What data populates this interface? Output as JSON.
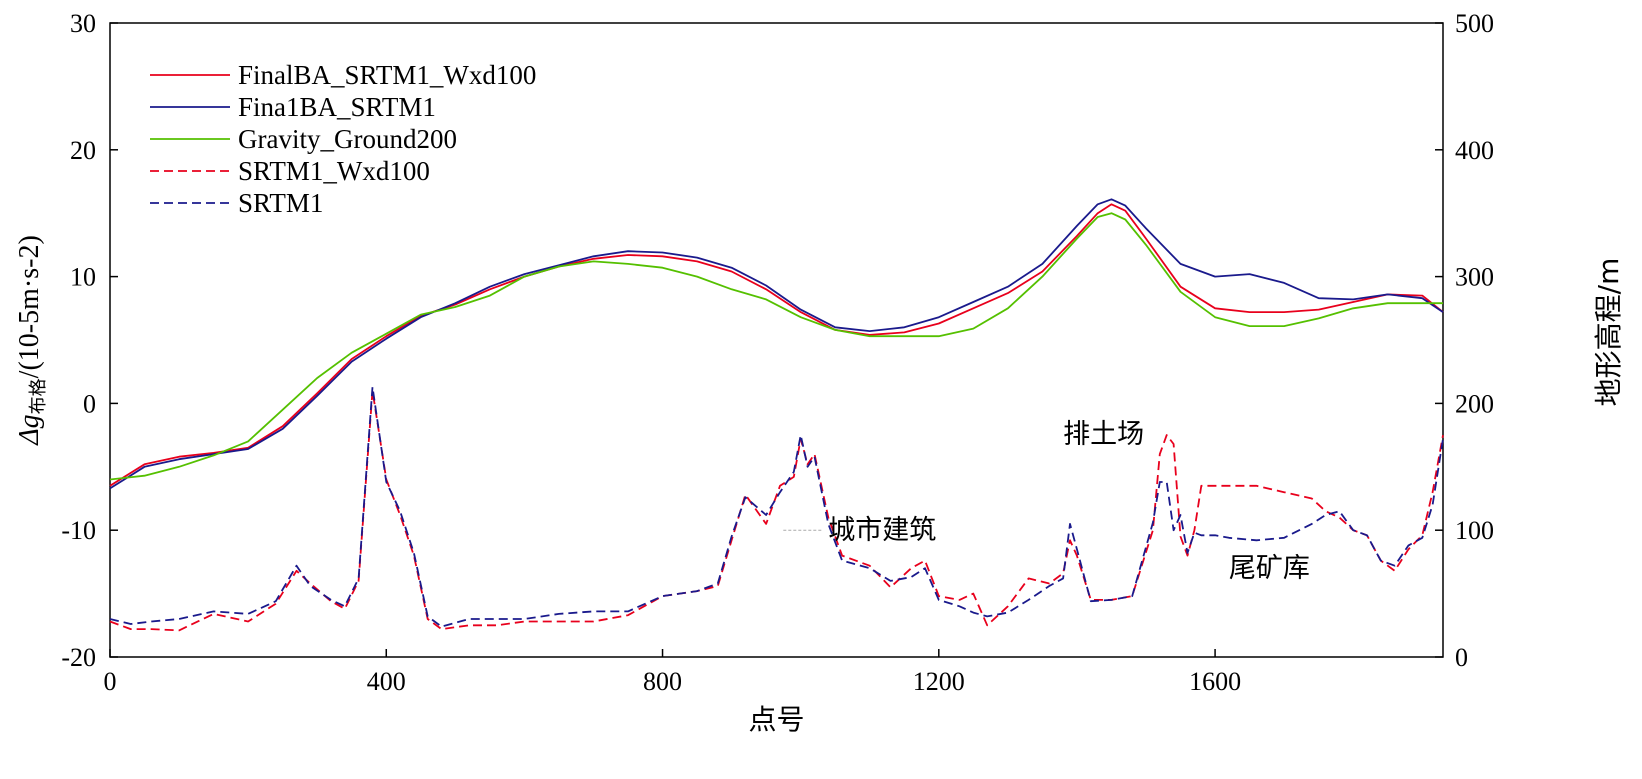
{
  "chart_data": {
    "type": "line",
    "xlabel": "点号",
    "ylabel_left": "Δg布格/(10⁻⁵m·s⁻²)",
    "ylabel_left_main": "Δg",
    "ylabel_left_sub": "布格",
    "ylabel_left_unit": "/(10-5m·s-2)",
    "ylabel_right": "地形高程/m",
    "xlim": [
      0,
      1930
    ],
    "ylim_left": [
      -20,
      30
    ],
    "ylim_right": [
      0,
      500
    ],
    "x_ticks": [
      0,
      400,
      800,
      1200,
      1600
    ],
    "y_left_ticks": [
      -20,
      -10,
      0,
      10,
      20,
      30
    ],
    "y_right_ticks": [
      0,
      100,
      200,
      300,
      400,
      500
    ],
    "legend_position": "top-left",
    "grid": false,
    "colors": {
      "red": "#e8001c",
      "blue": "#1a1a8c",
      "green": "#55c000"
    },
    "series": [
      {
        "name": "FinalBA_SRTM1_Wxd100",
        "axis": "left",
        "style": "solid",
        "color": "#e8001c",
        "x": [
          0,
          50,
          100,
          150,
          200,
          250,
          300,
          350,
          400,
          450,
          500,
          550,
          600,
          650,
          700,
          750,
          800,
          850,
          900,
          950,
          1000,
          1050,
          1100,
          1150,
          1200,
          1250,
          1300,
          1350,
          1400,
          1430,
          1450,
          1470,
          1500,
          1550,
          1600,
          1650,
          1700,
          1750,
          1800,
          1850,
          1900,
          1930
        ],
        "y": [
          -6.5,
          -4.8,
          -4.2,
          -3.9,
          -3.5,
          -1.8,
          0.8,
          3.5,
          5.3,
          6.9,
          7.8,
          9.0,
          10.0,
          10.8,
          11.4,
          11.7,
          11.6,
          11.2,
          10.4,
          9.0,
          7.2,
          5.8,
          5.4,
          5.6,
          6.3,
          7.5,
          8.7,
          10.4,
          13.2,
          15.0,
          15.7,
          15.2,
          13.0,
          9.2,
          7.5,
          7.2,
          7.2,
          7.4,
          8.0,
          8.6,
          8.5,
          7.2
        ]
      },
      {
        "name": "Fina1BA_SRTM1",
        "axis": "left",
        "style": "solid",
        "color": "#1a1a8c",
        "x": [
          0,
          50,
          100,
          150,
          200,
          250,
          300,
          350,
          400,
          450,
          500,
          550,
          600,
          650,
          700,
          750,
          800,
          850,
          900,
          950,
          1000,
          1050,
          1100,
          1150,
          1200,
          1250,
          1300,
          1350,
          1400,
          1430,
          1450,
          1470,
          1500,
          1550,
          1600,
          1650,
          1700,
          1750,
          1800,
          1850,
          1900,
          1930
        ],
        "y": [
          -6.7,
          -5.0,
          -4.4,
          -4.0,
          -3.6,
          -2.0,
          0.6,
          3.3,
          5.1,
          6.8,
          7.9,
          9.2,
          10.2,
          10.9,
          11.6,
          12.0,
          11.9,
          11.5,
          10.7,
          9.3,
          7.4,
          6.0,
          5.7,
          6.0,
          6.8,
          8.0,
          9.2,
          11.0,
          14.0,
          15.7,
          16.1,
          15.6,
          13.8,
          11.0,
          10.0,
          10.2,
          9.5,
          8.3,
          8.2,
          8.6,
          8.3,
          7.2
        ]
      },
      {
        "name": "Gravity_Ground200",
        "axis": "left",
        "style": "solid",
        "color": "#55c000",
        "x": [
          0,
          50,
          100,
          150,
          200,
          250,
          300,
          350,
          400,
          450,
          500,
          550,
          600,
          650,
          700,
          750,
          800,
          850,
          900,
          950,
          1000,
          1050,
          1100,
          1150,
          1200,
          1250,
          1300,
          1350,
          1400,
          1430,
          1450,
          1470,
          1500,
          1550,
          1600,
          1650,
          1700,
          1750,
          1800,
          1850,
          1900,
          1930
        ],
        "y": [
          -6.0,
          -5.7,
          -5.0,
          -4.1,
          -3.0,
          -0.5,
          2.0,
          4.0,
          5.5,
          7.0,
          7.6,
          8.5,
          10.0,
          10.8,
          11.2,
          11.0,
          10.7,
          10.0,
          9.0,
          8.2,
          6.8,
          5.8,
          5.3,
          5.3,
          5.3,
          5.9,
          7.5,
          10.0,
          13.0,
          14.7,
          15.0,
          14.5,
          12.5,
          8.8,
          6.8,
          6.1,
          6.1,
          6.7,
          7.5,
          7.9,
          7.9,
          7.9
        ]
      },
      {
        "name": "SRTM1_Wxd100",
        "axis": "right",
        "style": "dashed",
        "color": "#e8001c",
        "x": [
          0,
          30,
          60,
          100,
          150,
          200,
          240,
          270,
          290,
          320,
          340,
          360,
          380,
          400,
          420,
          440,
          460,
          480,
          520,
          560,
          600,
          650,
          700,
          750,
          800,
          850,
          880,
          900,
          920,
          950,
          970,
          990,
          1000,
          1010,
          1020,
          1040,
          1060,
          1100,
          1130,
          1160,
          1180,
          1200,
          1230,
          1250,
          1270,
          1300,
          1330,
          1360,
          1380,
          1390,
          1400,
          1420,
          1450,
          1480,
          1510,
          1520,
          1530,
          1540,
          1550,
          1560,
          1570,
          1580,
          1600,
          1620,
          1660,
          1700,
          1740,
          1760,
          1780,
          1800,
          1820,
          1840,
          1860,
          1880,
          1900,
          1915,
          1930
        ],
        "y": [
          28,
          22,
          22,
          21,
          34,
          28,
          42,
          68,
          58,
          44,
          38,
          60,
          210,
          140,
          112,
          80,
          30,
          22,
          25,
          25,
          28,
          28,
          28,
          33,
          48,
          52,
          56,
          92,
          128,
          105,
          135,
          142,
          172,
          152,
          160,
          110,
          80,
          72,
          55,
          70,
          76,
          48,
          45,
          50,
          25,
          40,
          62,
          58,
          66,
          92,
          80,
          45,
          45,
          48,
          100,
          160,
          175,
          168,
          95,
          80,
          100,
          135,
          135,
          135,
          135,
          130,
          125,
          115,
          110,
          100,
          96,
          76,
          68,
          85,
          96,
          130,
          175
        ]
      },
      {
        "name": "SRTM1",
        "axis": "right",
        "style": "dashed",
        "color": "#1a1a8c",
        "x": [
          0,
          30,
          60,
          100,
          150,
          200,
          240,
          270,
          290,
          320,
          340,
          360,
          380,
          400,
          420,
          440,
          460,
          480,
          520,
          560,
          600,
          650,
          700,
          750,
          800,
          850,
          880,
          900,
          920,
          950,
          970,
          990,
          1000,
          1010,
          1020,
          1040,
          1060,
          1100,
          1130,
          1160,
          1180,
          1200,
          1230,
          1250,
          1270,
          1300,
          1330,
          1360,
          1380,
          1390,
          1400,
          1420,
          1450,
          1480,
          1510,
          1520,
          1530,
          1540,
          1550,
          1560,
          1570,
          1580,
          1600,
          1620,
          1660,
          1700,
          1740,
          1760,
          1780,
          1800,
          1820,
          1840,
          1860,
          1880,
          1900,
          1915,
          1930
        ],
        "y": [
          30,
          26,
          28,
          30,
          36,
          34,
          44,
          72,
          56,
          45,
          40,
          62,
          213,
          138,
          115,
          82,
          32,
          24,
          30,
          30,
          30,
          34,
          36,
          36,
          48,
          52,
          58,
          95,
          126,
          112,
          130,
          146,
          175,
          150,
          158,
          105,
          76,
          70,
          60,
          63,
          70,
          45,
          40,
          35,
          32,
          35,
          45,
          56,
          62,
          105,
          85,
          44,
          45,
          48,
          106,
          138,
          138,
          100,
          112,
          82,
          98,
          96,
          96,
          94,
          92,
          94,
          105,
          112,
          115,
          100,
          96,
          76,
          72,
          88,
          94,
          120,
          172
        ]
      }
    ],
    "annotations": [
      {
        "text": "城市建筑",
        "x": 1040,
        "y_right": 100,
        "leader": true
      },
      {
        "text": "排土场",
        "x": 1380,
        "y_right": 176,
        "leader": false
      },
      {
        "text": "尾矿库",
        "x": 1620,
        "y_right": 70,
        "leader": false
      }
    ]
  }
}
